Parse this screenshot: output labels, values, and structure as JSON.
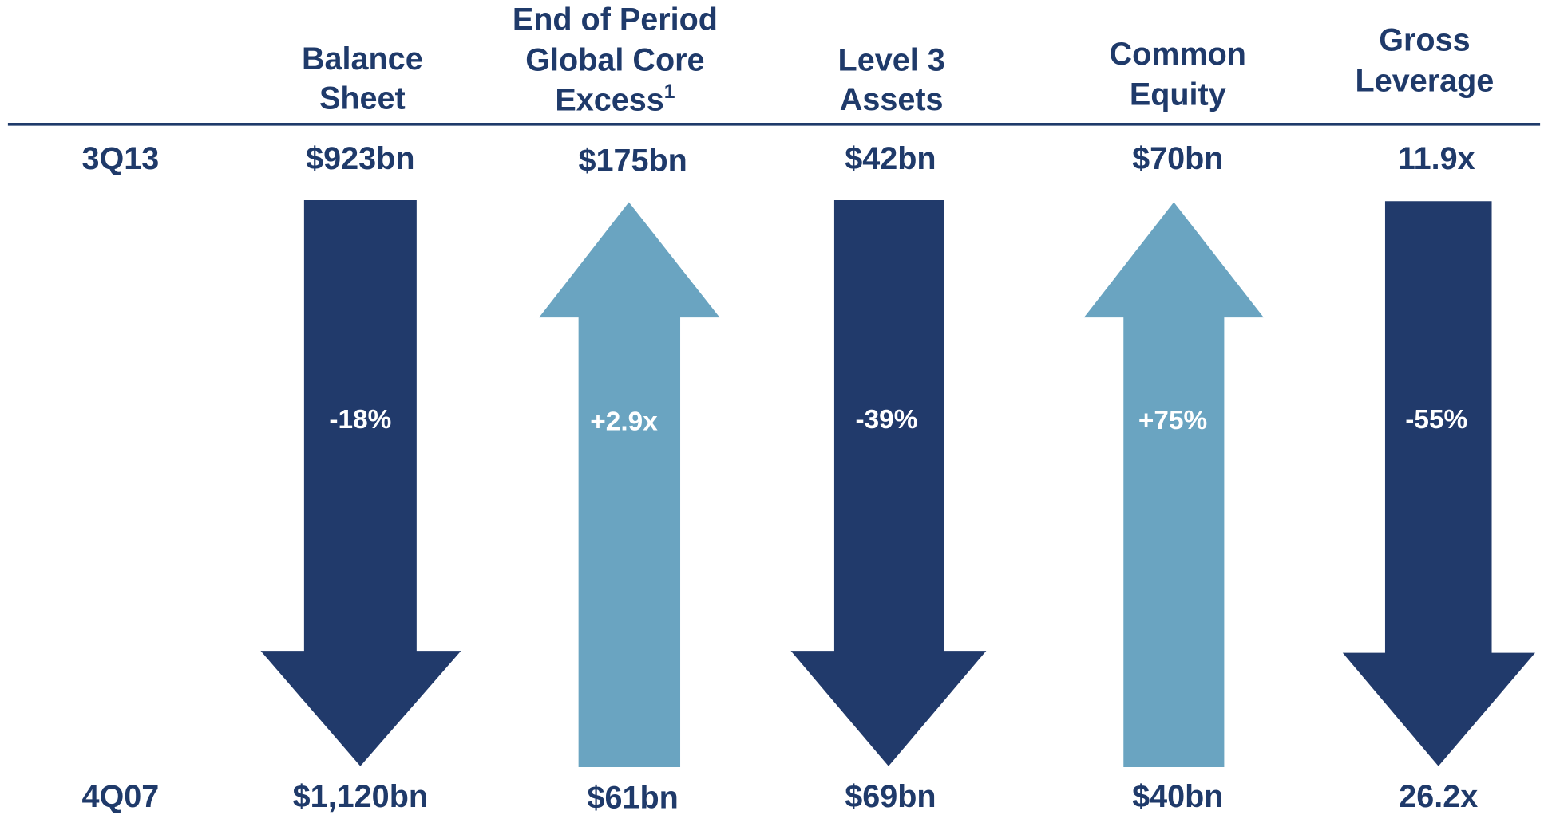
{
  "row_labels": [
    "3Q13",
    "4Q07"
  ],
  "columns": [
    {
      "header": [
        "Balance",
        "Sheet"
      ],
      "top": "$923bn",
      "bottom": "$1,120bn",
      "change": "-18%"
    },
    {
      "header": [
        "End of Period",
        "Global Core",
        "Excess"
      ],
      "footnote": "1",
      "top": "$175bn",
      "bottom": "$61bn",
      "change": "+2.9x"
    },
    {
      "header": [
        "Level 3",
        "Assets"
      ],
      "top": "$42bn",
      "bottom": "$69bn",
      "change": "-39%"
    },
    {
      "header": [
        "Common",
        "Equity"
      ],
      "top": "$70bn",
      "bottom": "$40bn",
      "change": "+75%"
    },
    {
      "header": [
        "Gross",
        "Leverage"
      ],
      "top": "11.9x",
      "bottom": "26.2x",
      "change": "-55%"
    }
  ]
}
